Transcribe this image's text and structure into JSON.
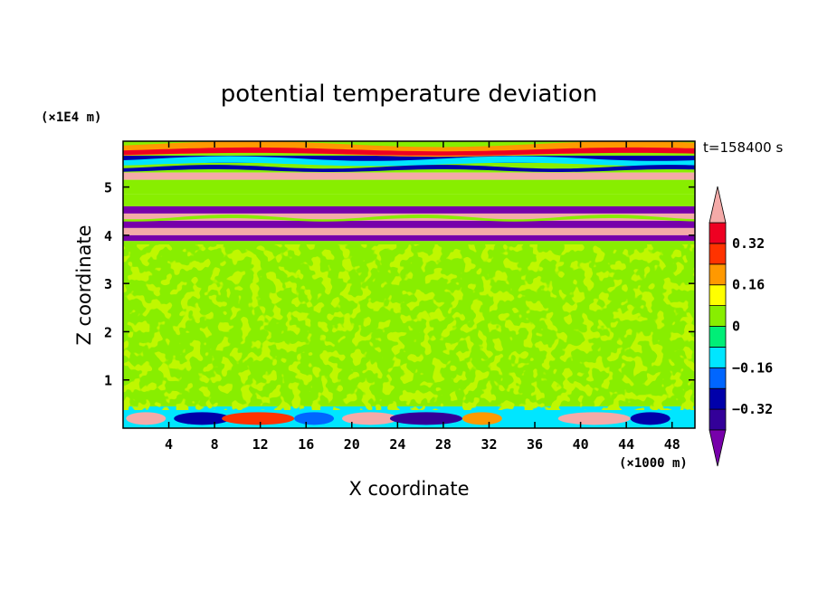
{
  "chart_data": {
    "type": "heatmap",
    "title": "potential temperature deviation",
    "xlabel": "X coordinate",
    "ylabel": "Z coordinate",
    "x_unit": "(×1000 m)",
    "y_unit": "(×1E4 m)",
    "time_label": "t=158400 s",
    "xlim": [
      0,
      50
    ],
    "ylim": [
      0,
      6
    ],
    "x_ticks": [
      4,
      8,
      12,
      16,
      20,
      24,
      28,
      32,
      36,
      40,
      44,
      48
    ],
    "y_ticks": [
      1,
      2,
      3,
      4,
      5
    ],
    "colorbar": {
      "levels": [
        -0.4,
        -0.32,
        -0.24,
        -0.16,
        -0.08,
        0,
        0.08,
        0.16,
        0.24,
        0.32,
        0.4
      ],
      "tick_labels": [
        "0.32",
        "0.16",
        "0",
        "−0.16",
        "−0.32"
      ],
      "tick_values": [
        0.32,
        0.16,
        0,
        -0.16,
        -0.32
      ],
      "band_colors": [
        "#330099",
        "#0000aa",
        "#0066ff",
        "#00e6ff",
        "#00ee77",
        "#88ee00",
        "#ffff00",
        "#ff9900",
        "#ff3300",
        "#ee0022"
      ],
      "under_color": "#7700aa",
      "over_color": "#f4aaa8"
    },
    "layers": [
      {
        "z": [
          5.65,
          5.95
        ],
        "value": 0.0
      },
      {
        "z": [
          5.5,
          5.65
        ],
        "value": -0.3
      },
      {
        "z": [
          5.3,
          5.5
        ],
        "value": 0.0
      },
      {
        "z": [
          5.15,
          5.3
        ],
        "value": 0.42
      },
      {
        "z": [
          4.85,
          5.15
        ],
        "value": 0.0
      },
      {
        "z": [
          4.6,
          4.85
        ],
        "value": 0.02
      },
      {
        "z": [
          4.45,
          4.6
        ],
        "value": -0.45
      },
      {
        "z": [
          4.3,
          4.45
        ],
        "value": 0.42
      },
      {
        "z": [
          4.15,
          4.3
        ],
        "value": -0.45
      },
      {
        "z": [
          4.0,
          4.15
        ],
        "value": 0.42
      },
      {
        "z": [
          3.88,
          4.0
        ],
        "value": -0.45
      },
      {
        "z": [
          0.45,
          3.88
        ],
        "value": 0.0
      },
      {
        "z": [
          0.0,
          0.45
        ],
        "value": -0.1
      }
    ]
  }
}
